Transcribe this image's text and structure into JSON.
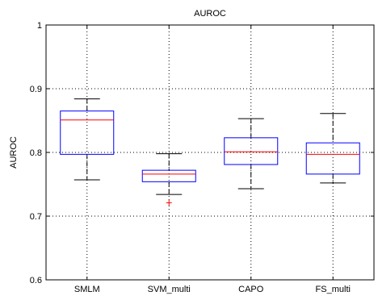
{
  "chart_data": {
    "type": "box",
    "title": "AUROC",
    "xlabel": "",
    "ylabel": "AUROC",
    "ylim": [
      0.6,
      1.0
    ],
    "yticks": [
      0.6,
      0.7,
      0.8,
      0.9,
      1.0
    ],
    "ytick_labels": [
      "0.6",
      "0.7",
      "0.8",
      "0.9",
      "1"
    ],
    "grid": true,
    "categories": [
      "SMLM",
      "SVM_multi",
      "CAPO",
      "FS_multi"
    ],
    "boxes": [
      {
        "whisker_low": 0.757,
        "q1": 0.797,
        "median": 0.851,
        "q3": 0.865,
        "whisker_high": 0.884,
        "outliers": []
      },
      {
        "whisker_low": 0.734,
        "q1": 0.754,
        "median": 0.766,
        "q3": 0.772,
        "whisker_high": 0.798,
        "outliers": [
          0.721
        ]
      },
      {
        "whisker_low": 0.743,
        "q1": 0.781,
        "median": 0.801,
        "q3": 0.823,
        "whisker_high": 0.853,
        "outliers": []
      },
      {
        "whisker_low": 0.752,
        "q1": 0.766,
        "median": 0.797,
        "q3": 0.815,
        "whisker_high": 0.861,
        "outliers": []
      }
    ],
    "colors": {
      "box": "#0000ff",
      "median": "#ff0000",
      "whisker": "#000000",
      "outlier": "#ff0000",
      "grid": "#000000",
      "axis": "#000000"
    }
  }
}
